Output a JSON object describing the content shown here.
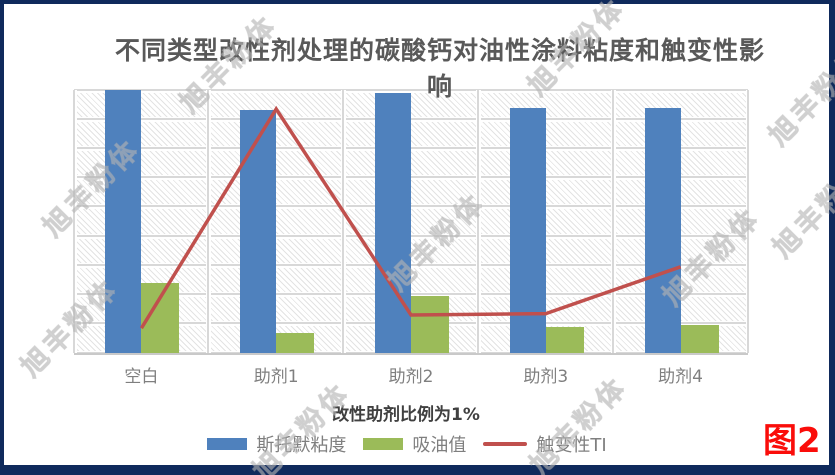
{
  "figure": {
    "label": "图2",
    "watermark_text": "旭丰粉体"
  },
  "colors": {
    "page_border": "#0f2a5c",
    "panel_background": "#ffffff",
    "title_text": "#595959",
    "axis_text": "#7f7f7f",
    "axis_title_text": "#404040",
    "gridline": "#d8d8d8",
    "figure_label_red": "#fa0d0a"
  },
  "chart_data": {
    "type": "bar",
    "subtype": "grouped bars with overlaid line series",
    "title": "不同类型改性剂处理的碳酸钙对油性涂料粘度和触变性影响",
    "xlabel": "改性助剂比例为1%",
    "ylabel": "",
    "y_axis_labels_visible": false,
    "y_unit_note": "y-axis unlabeled; values estimated in gridline units, 9 equal horizontal gridline intervals, ylim 0-9",
    "ylim": [
      0,
      9
    ],
    "grid": true,
    "plot_background": "light diagonal hatch pattern",
    "legend_position": "bottom",
    "categories": [
      "空白",
      "助剂1",
      "助剂2",
      "助剂3",
      "助剂4"
    ],
    "series": [
      {
        "name": "斯托默粘度",
        "type": "bar",
        "color": "#4F81BD",
        "values": [
          9.0,
          8.3,
          8.9,
          8.4,
          8.4
        ]
      },
      {
        "name": "吸油值",
        "type": "bar",
        "color": "#9BBB59",
        "values": [
          2.4,
          0.7,
          1.95,
          0.9,
          0.95
        ]
      },
      {
        "name": "触变性TI",
        "type": "line",
        "color": "#C0504D",
        "values": [
          0.85,
          8.35,
          1.3,
          1.35,
          2.95
        ]
      }
    ]
  }
}
